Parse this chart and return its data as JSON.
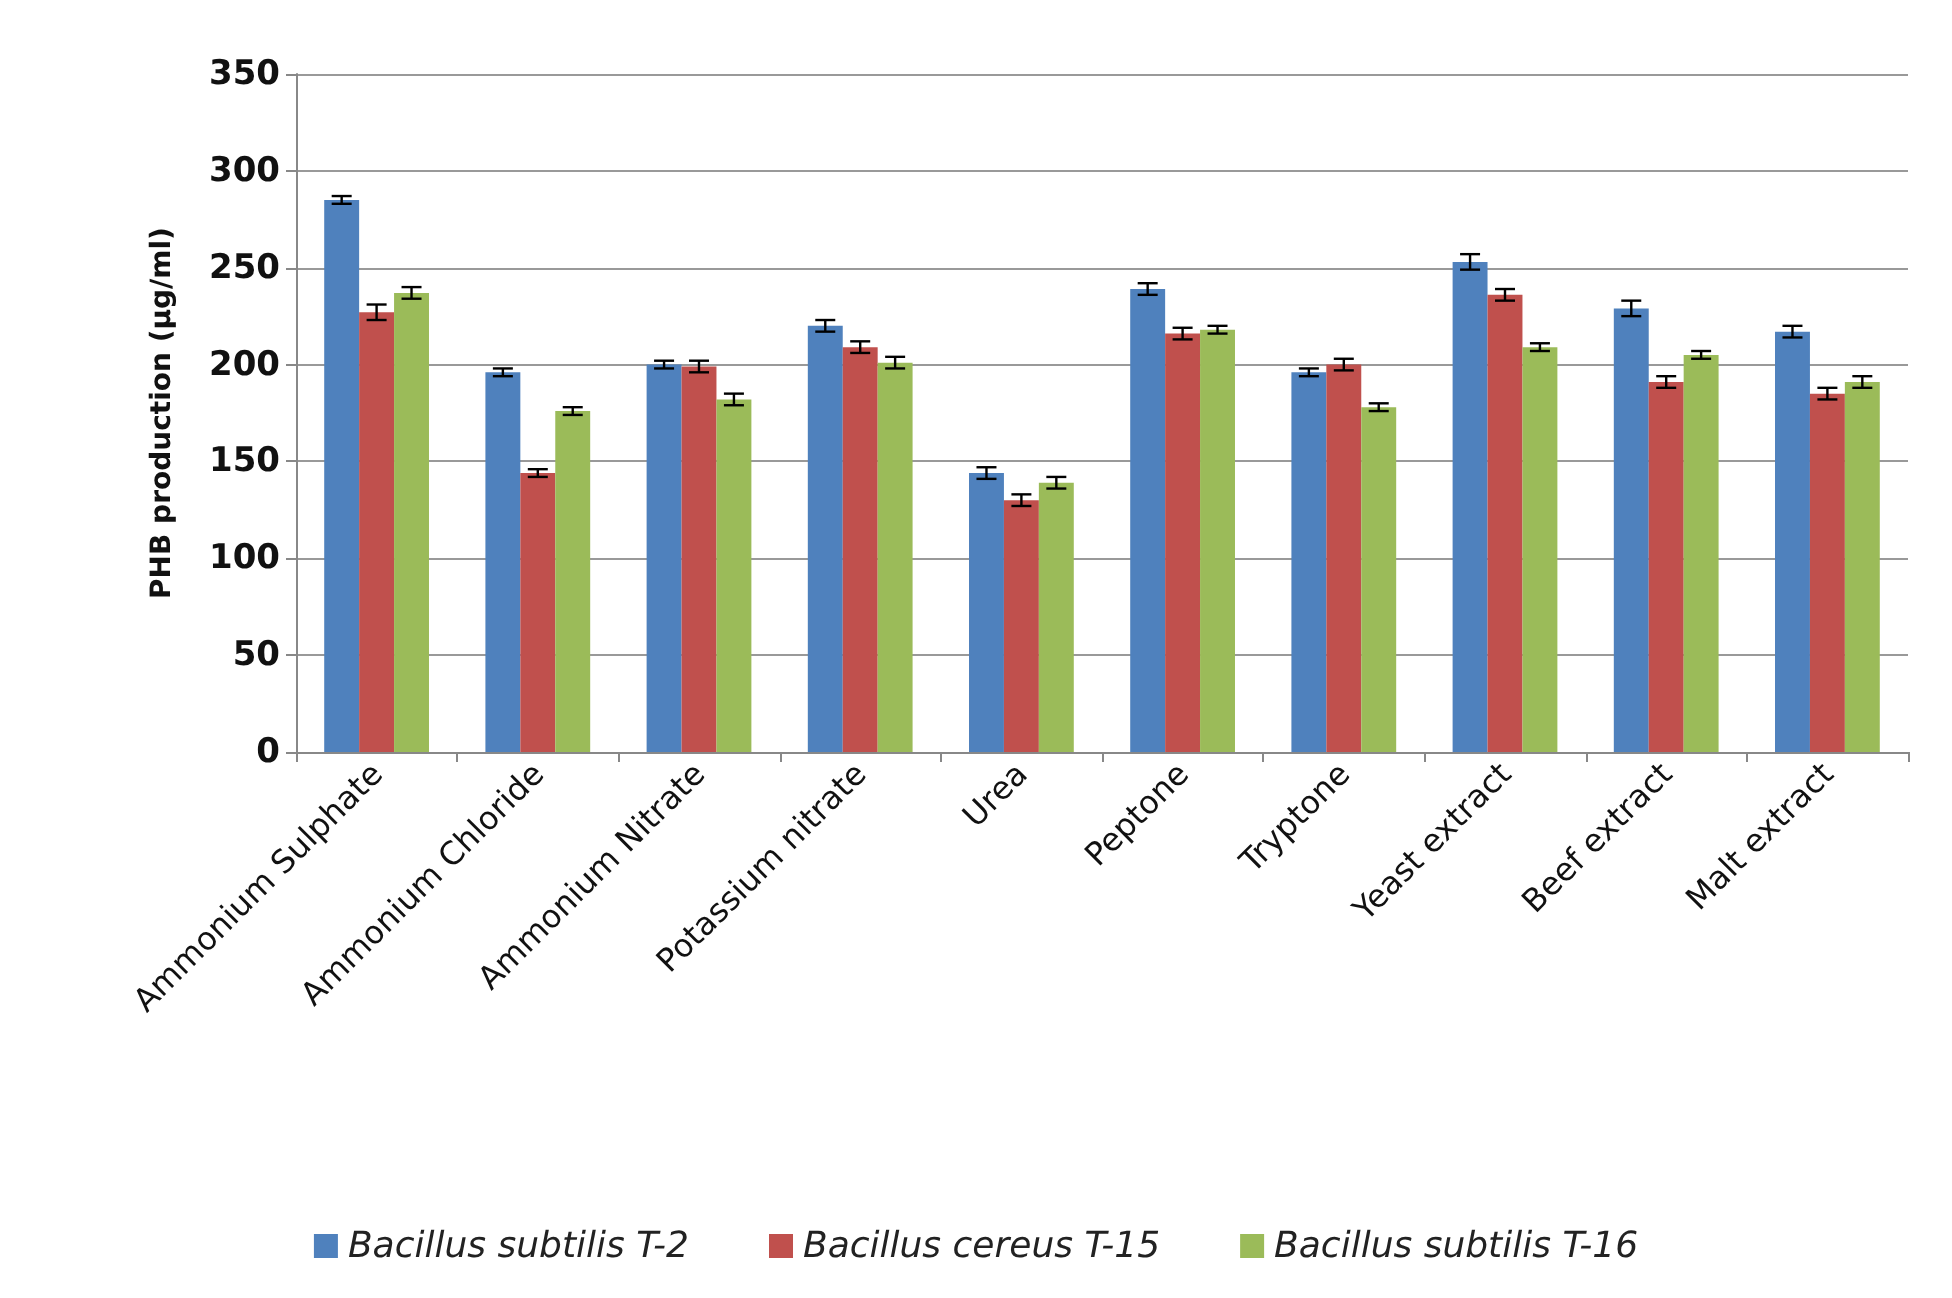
{
  "chart_data": {
    "type": "bar",
    "ylabel": "PHB production (µg/ml)",
    "categories": [
      "Ammonium Sulphate",
      "Ammonium Chloride",
      "Ammonium Nitrate",
      "Potassium nitrate",
      "Urea",
      "Peptone",
      "Tryptone",
      "Yeast extract",
      "Beef extract",
      "Malt extract"
    ],
    "series": [
      {
        "name": "Bacillus subtilis T-2",
        "color": "#4f81bd",
        "values": [
          285,
          196,
          200,
          220,
          144,
          239,
          196,
          253,
          229,
          217
        ],
        "errors": [
          2,
          2,
          2,
          3,
          3,
          3,
          2,
          4,
          4,
          3
        ]
      },
      {
        "name": "Bacillus cereus T-15",
        "color": "#c0504d",
        "values": [
          227,
          144,
          199,
          209,
          130,
          216,
          200,
          236,
          191,
          185
        ],
        "errors": [
          4,
          2,
          3,
          3,
          3,
          3,
          3,
          3,
          3,
          3
        ]
      },
      {
        "name": "Bacillus subtilis T-16",
        "color": "#9bbb59",
        "values": [
          237,
          176,
          182,
          201,
          139,
          218,
          178,
          209,
          205,
          191
        ],
        "errors": [
          3,
          2,
          3,
          3,
          3,
          2,
          2,
          2,
          2,
          3
        ]
      }
    ],
    "ylim": [
      0,
      350
    ],
    "yticks": [
      0,
      50,
      100,
      150,
      200,
      250,
      300,
      350
    ],
    "grid": "y",
    "legend": "bottom"
  }
}
